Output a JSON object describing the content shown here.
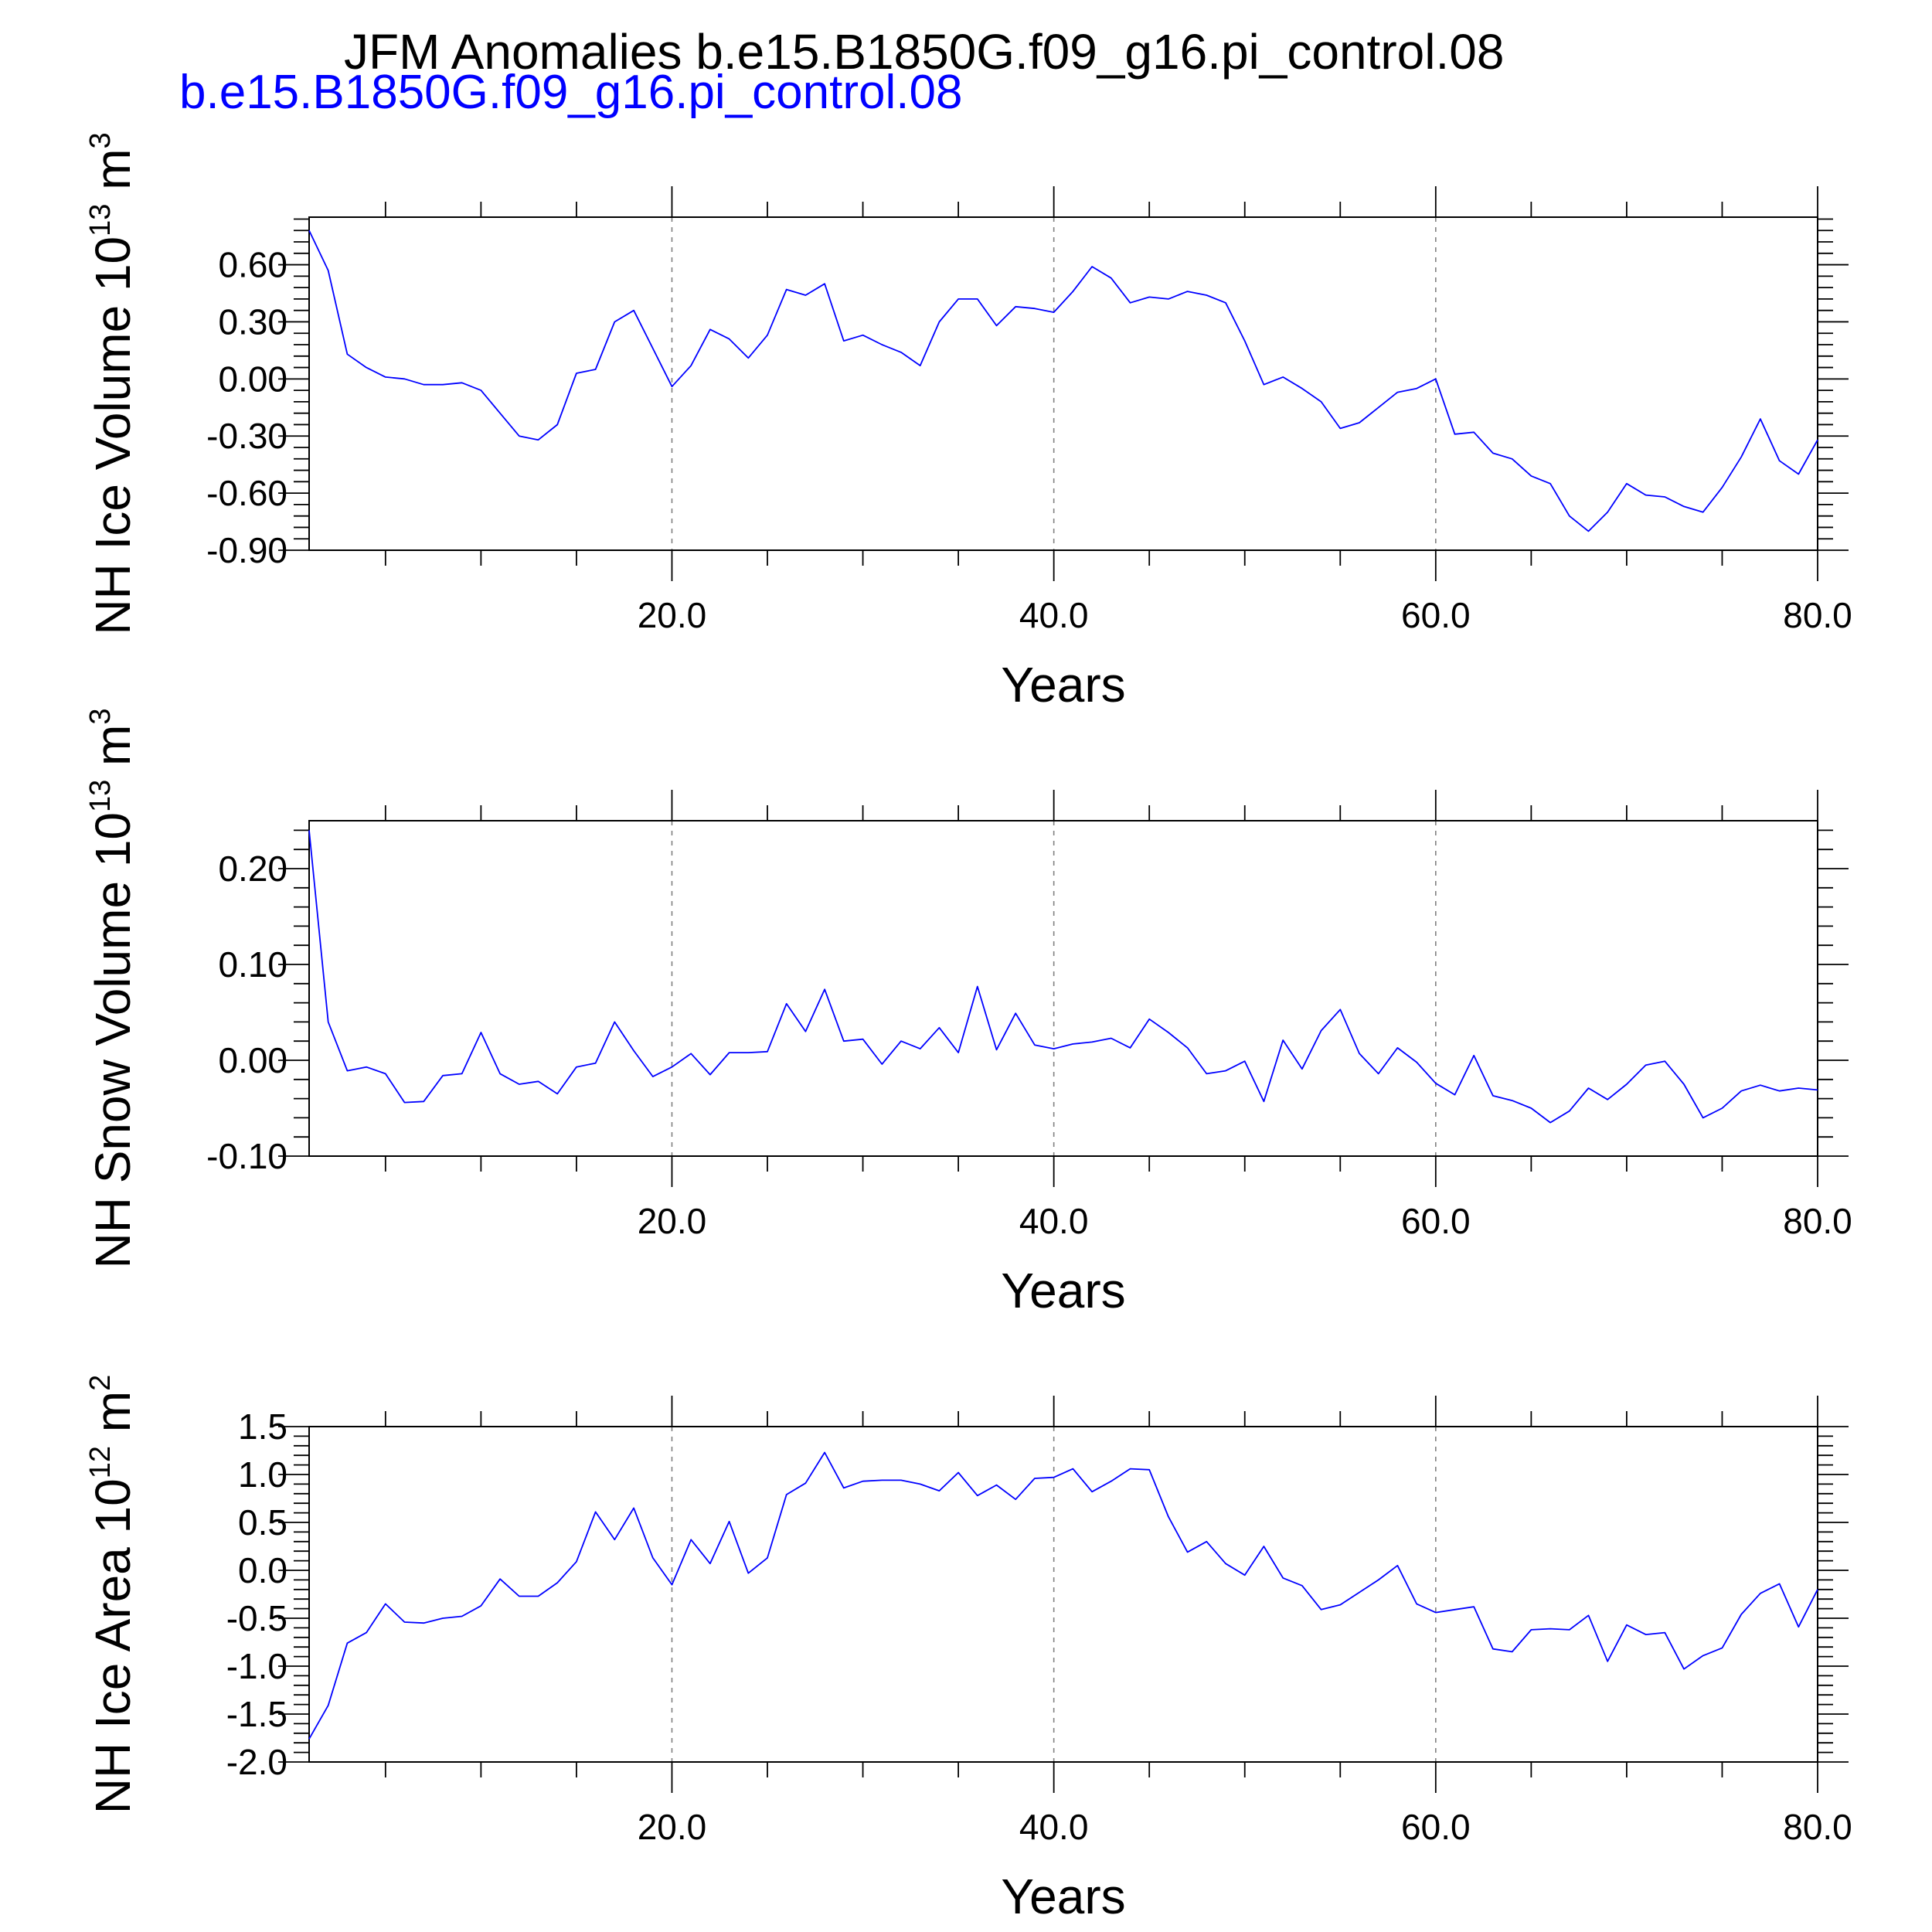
{
  "title": "JFM Anomalies b.e15.B1850G.f09_g16.pi_control.08",
  "subtitle": "b.e15.B1850G.f09_g16.pi_control.08",
  "colors": {
    "series": "#0000ff",
    "subtitle": "#0000ff",
    "axis": "#000000",
    "grid": "#808080"
  },
  "chart_data": [
    {
      "type": "line",
      "ylabel_main": "NH Ice Volume 10",
      "ylabel_exp": "13",
      "ylabel_unit": " m",
      "ylabel_unit_exp": "3",
      "xlabel": "Years",
      "xlim": [
        1,
        80
      ],
      "ylim": [
        -0.9,
        0.85
      ],
      "xticks": [
        20,
        40,
        60,
        80
      ],
      "xtick_labels": [
        "20.0",
        "40.0",
        "60.0",
        "80.0"
      ],
      "yticks": [
        -0.9,
        -0.6,
        -0.3,
        0.0,
        0.3,
        0.6
      ],
      "ytick_labels": [
        "-0.90",
        "-0.60",
        "-0.30",
        "0.00",
        "0.30",
        "0.60"
      ],
      "grid": "dashed vertical at major x ticks",
      "series": [
        {
          "x": [
            1,
            2,
            3,
            4,
            5,
            6,
            7,
            8,
            9,
            10,
            11,
            12,
            13,
            14,
            15,
            16,
            17,
            18,
            19,
            20,
            21,
            22,
            23,
            24,
            25,
            26,
            27,
            28,
            29,
            30,
            31,
            32,
            33,
            34,
            35,
            36,
            37,
            38,
            39,
            40,
            41,
            42,
            43,
            44,
            45,
            46,
            47,
            48,
            49,
            50,
            51,
            52,
            53,
            54,
            55,
            56,
            57,
            58,
            59,
            60,
            61,
            62,
            63,
            64,
            65,
            66,
            67,
            68,
            69,
            70,
            71,
            72,
            73,
            74,
            75,
            76,
            77,
            78,
            79,
            80
          ],
          "values": [
            0.78,
            0.57,
            0.13,
            0.06,
            0.01,
            0.0,
            -0.03,
            -0.03,
            -0.02,
            -0.06,
            -0.18,
            -0.3,
            -0.32,
            -0.24,
            0.03,
            0.05,
            0.3,
            0.36,
            0.16,
            -0.04,
            0.07,
            0.26,
            0.21,
            0.11,
            0.23,
            0.47,
            0.44,
            0.5,
            0.2,
            0.23,
            0.18,
            0.14,
            0.07,
            0.3,
            0.42,
            0.42,
            0.28,
            0.38,
            0.37,
            0.35,
            0.46,
            0.59,
            0.53,
            0.4,
            0.43,
            0.42,
            0.46,
            0.44,
            0.4,
            0.2,
            -0.03,
            0.01,
            -0.05,
            -0.12,
            -0.26,
            -0.23,
            -0.15,
            -0.07,
            -0.05,
            0.0,
            -0.29,
            -0.28,
            -0.39,
            -0.42,
            -0.51,
            -0.55,
            -0.72,
            -0.8,
            -0.7,
            -0.55,
            -0.61,
            -0.62,
            -0.67,
            -0.7,
            -0.57,
            -0.41,
            -0.21,
            -0.43,
            -0.5,
            -0.32
          ]
        }
      ]
    },
    {
      "type": "line",
      "ylabel_main": "NH Snow Volume 10",
      "ylabel_exp": "13",
      "ylabel_unit": " m",
      "ylabel_unit_exp": "3",
      "xlabel": "Years",
      "xlim": [
        1,
        80
      ],
      "ylim": [
        -0.1,
        0.25
      ],
      "xticks": [
        20,
        40,
        60,
        80
      ],
      "xtick_labels": [
        "20.0",
        "40.0",
        "60.0",
        "80.0"
      ],
      "yticks": [
        -0.1,
        0.0,
        0.1,
        0.2
      ],
      "ytick_labels": [
        "-0.10",
        "0.00",
        "0.10",
        "0.20"
      ],
      "grid": "dashed vertical at major x ticks",
      "series": [
        {
          "x": [
            1,
            2,
            3,
            4,
            5,
            6,
            7,
            8,
            9,
            10,
            11,
            12,
            13,
            14,
            15,
            16,
            17,
            18,
            19,
            20,
            21,
            22,
            23,
            24,
            25,
            26,
            27,
            28,
            29,
            30,
            31,
            32,
            33,
            34,
            35,
            36,
            37,
            38,
            39,
            40,
            41,
            42,
            43,
            44,
            45,
            46,
            47,
            48,
            49,
            50,
            51,
            52,
            53,
            54,
            55,
            56,
            57,
            58,
            59,
            60,
            61,
            62,
            63,
            64,
            65,
            66,
            67,
            68,
            69,
            70,
            71,
            72,
            73,
            74,
            75,
            76,
            77,
            78,
            79,
            80
          ],
          "values": [
            0.24,
            0.04,
            -0.011,
            -0.007,
            -0.014,
            -0.044,
            -0.043,
            -0.016,
            -0.014,
            0.029,
            -0.014,
            -0.025,
            -0.022,
            -0.035,
            -0.007,
            -0.003,
            0.04,
            0.01,
            -0.017,
            -0.007,
            0.007,
            -0.015,
            0.008,
            0.008,
            0.009,
            0.059,
            0.03,
            0.074,
            0.02,
            0.022,
            -0.004,
            0.02,
            0.012,
            0.034,
            0.008,
            0.077,
            0.011,
            0.049,
            0.016,
            0.012,
            0.017,
            0.019,
            0.023,
            0.013,
            0.043,
            0.029,
            0.013,
            -0.014,
            -0.011,
            -0.001,
            -0.043,
            0.021,
            -0.009,
            0.031,
            0.053,
            0.007,
            -0.014,
            0.013,
            -0.002,
            -0.024,
            -0.036,
            0.005,
            -0.037,
            -0.042,
            -0.05,
            -0.065,
            -0.053,
            -0.029,
            -0.041,
            -0.025,
            -0.005,
            -0.001,
            -0.025,
            -0.06,
            -0.05,
            -0.032,
            -0.026,
            -0.032,
            -0.029,
            -0.031
          ]
        }
      ]
    },
    {
      "type": "line",
      "ylabel_main": "NH Ice Area 10",
      "ylabel_exp": "12",
      "ylabel_unit": " m",
      "ylabel_unit_exp": "2",
      "xlabel": "Years",
      "xlim": [
        1,
        80
      ],
      "ylim": [
        -2.0,
        1.5
      ],
      "xticks": [
        20,
        40,
        60,
        80
      ],
      "xtick_labels": [
        "20.0",
        "40.0",
        "60.0",
        "80.0"
      ],
      "yticks": [
        -2.0,
        -1.5,
        -1.0,
        -0.5,
        0.0,
        0.5,
        1.0,
        1.5
      ],
      "ytick_labels": [
        "-2.0",
        "-1.5",
        "-1.0",
        "-0.5",
        "0.0",
        "0.5",
        "1.0",
        "1.5"
      ],
      "grid": "dashed vertical at major x ticks",
      "series": [
        {
          "x": [
            1,
            2,
            3,
            4,
            5,
            6,
            7,
            8,
            9,
            10,
            11,
            12,
            13,
            14,
            15,
            16,
            17,
            18,
            19,
            20,
            21,
            22,
            23,
            24,
            25,
            26,
            27,
            28,
            29,
            30,
            31,
            32,
            33,
            34,
            35,
            36,
            37,
            38,
            39,
            40,
            41,
            42,
            43,
            44,
            45,
            46,
            47,
            48,
            49,
            50,
            51,
            52,
            53,
            54,
            55,
            56,
            57,
            58,
            59,
            60,
            61,
            62,
            63,
            64,
            65,
            66,
            67,
            68,
            69,
            70,
            71,
            72,
            73,
            74,
            75,
            76,
            77,
            78,
            79,
            80
          ],
          "values": [
            -1.76,
            -1.41,
            -0.76,
            -0.65,
            -0.35,
            -0.54,
            -0.55,
            -0.5,
            -0.48,
            -0.37,
            -0.09,
            -0.27,
            -0.27,
            -0.13,
            0.09,
            0.61,
            0.32,
            0.65,
            0.13,
            -0.15,
            0.32,
            0.07,
            0.51,
            -0.03,
            0.13,
            0.79,
            0.91,
            1.23,
            0.86,
            0.93,
            0.94,
            0.94,
            0.9,
            0.83,
            1.02,
            0.78,
            0.89,
            0.74,
            0.96,
            0.97,
            1.06,
            0.82,
            0.93,
            1.06,
            1.05,
            0.56,
            0.19,
            0.3,
            0.07,
            -0.05,
            0.25,
            -0.08,
            -0.16,
            -0.41,
            -0.36,
            -0.23,
            -0.1,
            0.05,
            -0.35,
            -0.44,
            -0.41,
            -0.38,
            -0.82,
            -0.85,
            -0.62,
            -0.61,
            -0.62,
            -0.47,
            -0.95,
            -0.57,
            -0.67,
            -0.65,
            -1.03,
            -0.89,
            -0.81,
            -0.46,
            -0.24,
            -0.14,
            -0.59,
            -0.2
          ]
        }
      ]
    }
  ]
}
